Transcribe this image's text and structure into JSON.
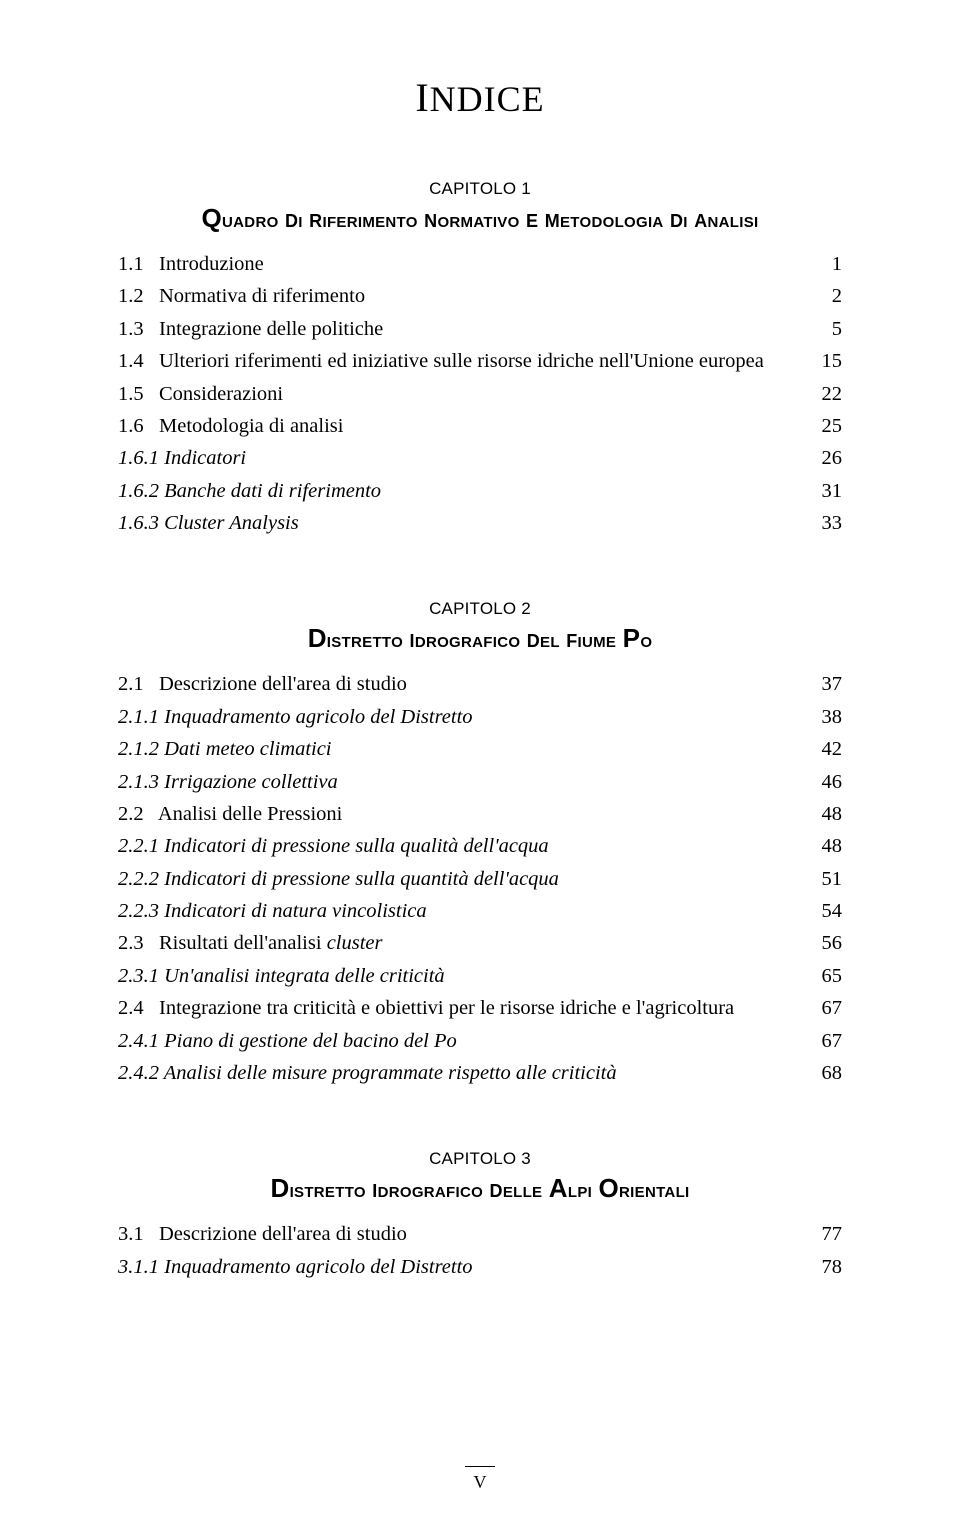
{
  "title": "Indice",
  "footer": "V",
  "chapters": [
    {
      "label": "CAPITOLO 1",
      "title": "Quadro di riferimento normativo e metodologia di analisi",
      "entries": [
        {
          "num": "1.1",
          "text": "Introduzione",
          "page": "1",
          "italic": false
        },
        {
          "num": "1.2",
          "text": "Normativa di riferimento",
          "page": "2",
          "italic": false
        },
        {
          "num": "1.3",
          "text": "Integrazione delle politiche",
          "page": "5",
          "italic": false
        },
        {
          "num": "1.4",
          "text": "Ulteriori riferimenti ed iniziative sulle risorse idriche nell'Unione europea",
          "page": "15",
          "italic": false
        },
        {
          "num": "1.5",
          "text": "Considerazioni",
          "page": "22",
          "italic": false
        },
        {
          "num": "1.6",
          "text": "Metodologia di analisi",
          "page": "25",
          "italic": false
        },
        {
          "num": "1.6.1",
          "text": "Indicatori",
          "page": "26",
          "italic": true
        },
        {
          "num": "1.6.2",
          "text": "Banche dati di riferimento",
          "page": "31",
          "italic": true
        },
        {
          "num": "1.6.3",
          "text": "Cluster Analysis",
          "page": "33",
          "italic": true
        }
      ]
    },
    {
      "label": "CAPITOLO 2",
      "title": "Distretto idrografico del fiume Po",
      "entries": [
        {
          "num": "2.1",
          "text": "Descrizione dell'area di studio",
          "page": "37",
          "italic": false
        },
        {
          "num": "2.1.1",
          "text": "Inquadramento agricolo del Distretto",
          "page": "38",
          "italic": true
        },
        {
          "num": "2.1.2",
          "text": "Dati meteo climatici",
          "page": "42",
          "italic": true
        },
        {
          "num": "2.1.3",
          "text": "Irrigazione collettiva",
          "page": "46",
          "italic": true
        },
        {
          "num": "2.2",
          "text": "Analisi delle Pressioni",
          "page": "48",
          "italic": false
        },
        {
          "num": "2.2.1",
          "text": "Indicatori di pressione sulla qualità dell'acqua",
          "page": "48",
          "italic": true
        },
        {
          "num": "2.2.2",
          "text": "Indicatori di pressione sulla quantità dell'acqua",
          "page": "51",
          "italic": true
        },
        {
          "num": "2.2.3",
          "text": "Indicatori di natura vincolistica",
          "page": "54",
          "italic": true
        },
        {
          "num": "2.3",
          "text": "Risultati dell'analisi cluster",
          "page": "56",
          "italic": false,
          "mixedItalic": "cluster"
        },
        {
          "num": "2.3.1",
          "text": "Un'analisi integrata delle criticità",
          "page": "65",
          "italic": true
        },
        {
          "num": "2.4",
          "text": "Integrazione tra criticità e obiettivi per le risorse idriche e l'agricoltura",
          "page": "67",
          "italic": false
        },
        {
          "num": "2.4.1",
          "text": "Piano di gestione del bacino del Po",
          "page": "67",
          "italic": true
        },
        {
          "num": "2.4.2",
          "text": "Analisi delle misure programmate rispetto alle criticità",
          "page": "68",
          "italic": true
        }
      ]
    },
    {
      "label": "CAPITOLO 3",
      "title": "Distretto idrografico delle Alpi Orientali",
      "entries": [
        {
          "num": "3.1",
          "text": "Descrizione dell'area di studio",
          "page": "77",
          "italic": false
        },
        {
          "num": "3.1.1",
          "text": "Inquadramento agricolo del Distretto",
          "page": "78",
          "italic": true
        }
      ]
    }
  ]
}
